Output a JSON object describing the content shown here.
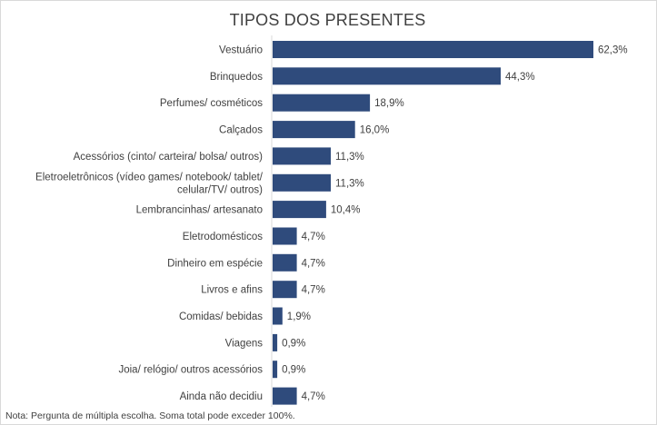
{
  "chart_data": {
    "type": "bar",
    "orientation": "horizontal",
    "title": "TIPOS DOS PRESENTES",
    "categories": [
      "Vestuário",
      "Brinquedos",
      "Perfumes/ cosméticos",
      "Calçados",
      "Acessórios (cinto/ carteira/ bolsa/ outros)",
      "Eletroeletrônicos (vídeo games/ notebook/ tablet/ celular/TV/ outros)",
      "Lembrancinhas/ artesanato",
      "Eletrodomésticos",
      "Dinheiro em espécie",
      "Livros e afins",
      "Comidas/ bebidas",
      "Viagens",
      "Joia/ relógio/ outros acessórios",
      "Ainda não decidiu"
    ],
    "category_lines": [
      [
        "Vestuário"
      ],
      [
        "Brinquedos"
      ],
      [
        "Perfumes/ cosméticos"
      ],
      [
        "Calçados"
      ],
      [
        "Acessórios (cinto/ carteira/ bolsa/ outros)"
      ],
      [
        "Eletroeletrônicos (vídeo games/ notebook/ tablet/",
        "celular/TV/ outros)"
      ],
      [
        "Lembrancinhas/ artesanato"
      ],
      [
        "Eletrodomésticos"
      ],
      [
        "Dinheiro em espécie"
      ],
      [
        "Livros e afins"
      ],
      [
        "Comidas/ bebidas"
      ],
      [
        "Viagens"
      ],
      [
        "Joia/ relógio/ outros acessórios"
      ],
      [
        "Ainda não decidiu"
      ]
    ],
    "values": [
      62.3,
      44.3,
      18.9,
      16.0,
      11.3,
      11.3,
      10.4,
      4.7,
      4.7,
      4.7,
      1.9,
      0.9,
      0.9,
      4.7
    ],
    "value_labels": [
      "62,3%",
      "44,3%",
      "18,9%",
      "16,0%",
      "11,3%",
      "11,3%",
      "10,4%",
      "4,7%",
      "4,7%",
      "4,7%",
      "1,9%",
      "0,9%",
      "0,9%",
      "4,7%"
    ],
    "bar_color": "#2f4b7c",
    "xlim": [
      0,
      62.3
    ],
    "grid": false,
    "legend": "none"
  },
  "note": "Nota: Pergunta de múltipla escolha. Soma total pode exceder 100%."
}
